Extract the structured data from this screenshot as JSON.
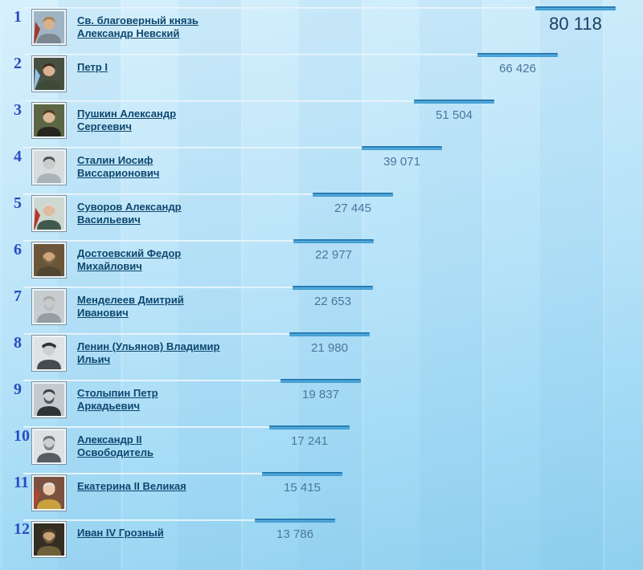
{
  "colors": {
    "background_top": "#d7f0fc",
    "background_bottom": "#8fd0ef",
    "bar_dark_top": "#1d72a9",
    "bar_dark_body": "#4aa2d6",
    "bar_track": "#e4f3fb",
    "rank_number": "#2a4cc2",
    "name_link": "#0e476e",
    "vote_value": "#4a769c",
    "vote_value_first": "#1c3d63",
    "portrait_frame": "#7d8f9c"
  },
  "ranking": {
    "rows": [
      {
        "rank": "1",
        "name": "Св. благоверный князь Александр Невский",
        "name_lines": [
          "Св. благоверный князь",
          "Александр Невский"
        ],
        "votes": 80118,
        "votes_display": "80 118",
        "portrait": {
          "bg": "#9fb4c4",
          "coat": "#7c8891",
          "skin": "#d8b28c",
          "hair": "#a98450",
          "accent": "#a03b2e"
        }
      },
      {
        "rank": "2",
        "name": "Петр I",
        "name_lines": [
          "Петр I"
        ],
        "votes": 66426,
        "votes_display": "66 426",
        "portrait": {
          "bg": "#474f41",
          "coat": "#3e4a38",
          "skin": "#d9b192",
          "hair": "#3f2e20",
          "accent": "#8fc3e8"
        }
      },
      {
        "rank": "3",
        "name": "Пушкин Александр Сергеевич",
        "name_lines": [
          "Пушкин Александр",
          "Сергеевич"
        ],
        "votes": 51504,
        "votes_display": "51 504",
        "portrait": {
          "bg": "#5c6644",
          "coat": "#26261f",
          "skin": "#dcb897",
          "hair": "#4f3c2a"
        }
      },
      {
        "rank": "4",
        "name": "Сталин Иосиф Виссарионович",
        "name_lines": [
          "Сталин Иосиф",
          "Виссарионович"
        ],
        "votes": 39071,
        "votes_display": "39 071",
        "portrait": {
          "bg": "#d8dcdd",
          "coat": "#aab3b6",
          "skin": "#cbcccc",
          "hair": "#4e5457"
        }
      },
      {
        "rank": "5",
        "name": "Суворов Александр Васильевич",
        "name_lines": [
          "Суворов Александр",
          "Васильевич"
        ],
        "votes": 27445,
        "votes_display": "27 445",
        "portrait": {
          "bg": "#cdd8d2",
          "coat": "#3f5a4c",
          "skin": "#e0bb9d",
          "hair": "#d9d9d6",
          "accent": "#b5372c"
        }
      },
      {
        "rank": "6",
        "name": "Достоевский Федор Михайлович",
        "name_lines": [
          "Достоевский Федор",
          "Михайлович"
        ],
        "votes": 22977,
        "votes_display": "22 977",
        "portrait": {
          "bg": "#6b5639",
          "coat": "#52452f",
          "skin": "#cfa67e",
          "hair": "#6e583b",
          "beard": "#7a6342"
        }
      },
      {
        "rank": "7",
        "name": "Менделеев Дмитрий Иванович",
        "name_lines": [
          "Менделеев Дмитрий",
          "Иванович"
        ],
        "votes": 22653,
        "votes_display": "22 653",
        "portrait": {
          "bg": "#c6ccd0",
          "coat": "#969ea3",
          "skin": "#c9c9c9",
          "hair": "#a8abad",
          "beard": "#b9bcbe"
        }
      },
      {
        "rank": "8",
        "name": "Ленин (Ульянов) Владимир Ильич",
        "name_lines": [
          "Ленин (Ульянов) Владимир",
          "Ильич"
        ],
        "votes": 21980,
        "votes_display": "21 980",
        "portrait": {
          "bg": "#dfe3e5",
          "coat": "#454b4e",
          "skin": "#ced1d3",
          "hair": "#34393c",
          "hat": "#2f3437"
        }
      },
      {
        "rank": "9",
        "name": "Столыпин Петр Аркадьевич",
        "name_lines": [
          "Столыпин Петр",
          "Аркадьевич"
        ],
        "votes": 19837,
        "votes_display": "19 837",
        "portrait": {
          "bg": "#c4c9cd",
          "coat": "#2e3336",
          "skin": "#cfd2d4",
          "hair": "#3c4144",
          "beard": "#55595c"
        }
      },
      {
        "rank": "10",
        "name": "Александр II Освободитель",
        "name_lines": [
          "Александр II",
          "Освободитель"
        ],
        "votes": 17241,
        "votes_display": "17 241",
        "portrait": {
          "bg": "#dde1e4",
          "coat": "#585d62",
          "skin": "#cdd0d2",
          "hair": "#6c7175",
          "beard": "#80858a"
        }
      },
      {
        "rank": "11",
        "name": "Екатерина II Великая",
        "name_lines": [
          "Екатерина II Великая"
        ],
        "votes": 15415,
        "votes_display": "15 415",
        "portrait": {
          "bg": "#7b5240",
          "coat": "#caa13c",
          "skin": "#ecc9ac",
          "hair": "#e3ddd6",
          "accent": "#b4452f"
        }
      },
      {
        "rank": "12",
        "name": "Иван IV Грозный",
        "name_lines": [
          "Иван IV Грозный"
        ],
        "votes": 13786,
        "votes_display": "13 786",
        "portrait": {
          "bg": "#332d22",
          "coat": "#70603a",
          "skin": "#caa379",
          "hair": "#5f4d33",
          "beard": "#6b573a",
          "hat": "#4a3c28"
        }
      }
    ]
  },
  "chart_data": {
    "type": "bar",
    "orientation": "horizontal",
    "categories": [
      "Св. благоверный князь Александр Невский",
      "Петр I",
      "Пушкин Александр Сергеевич",
      "Сталин Иосиф Виссарионович",
      "Суворов Александр Васильевич",
      "Достоевский Федор Михайлович",
      "Менделеев Дмитрий Иванович",
      "Ленин (Ульянов) Владимир Ильич",
      "Столыпин Петр Аркадьевич",
      "Александр II Освободитель",
      "Екатерина II Великая",
      "Иван IV Грозный"
    ],
    "values": [
      80118,
      66426,
      51504,
      39071,
      27445,
      22977,
      22653,
      21980,
      19837,
      17241,
      15415,
      13786
    ],
    "value_labels": [
      "80 118",
      "66 426",
      "51 504",
      "39 071",
      "27 445",
      "22 977",
      "22 653",
      "21 980",
      "19 837",
      "17 241",
      "15 415",
      "13 786"
    ],
    "title": "",
    "xlabel": "",
    "ylabel": "",
    "grid": false,
    "legend": false
  }
}
